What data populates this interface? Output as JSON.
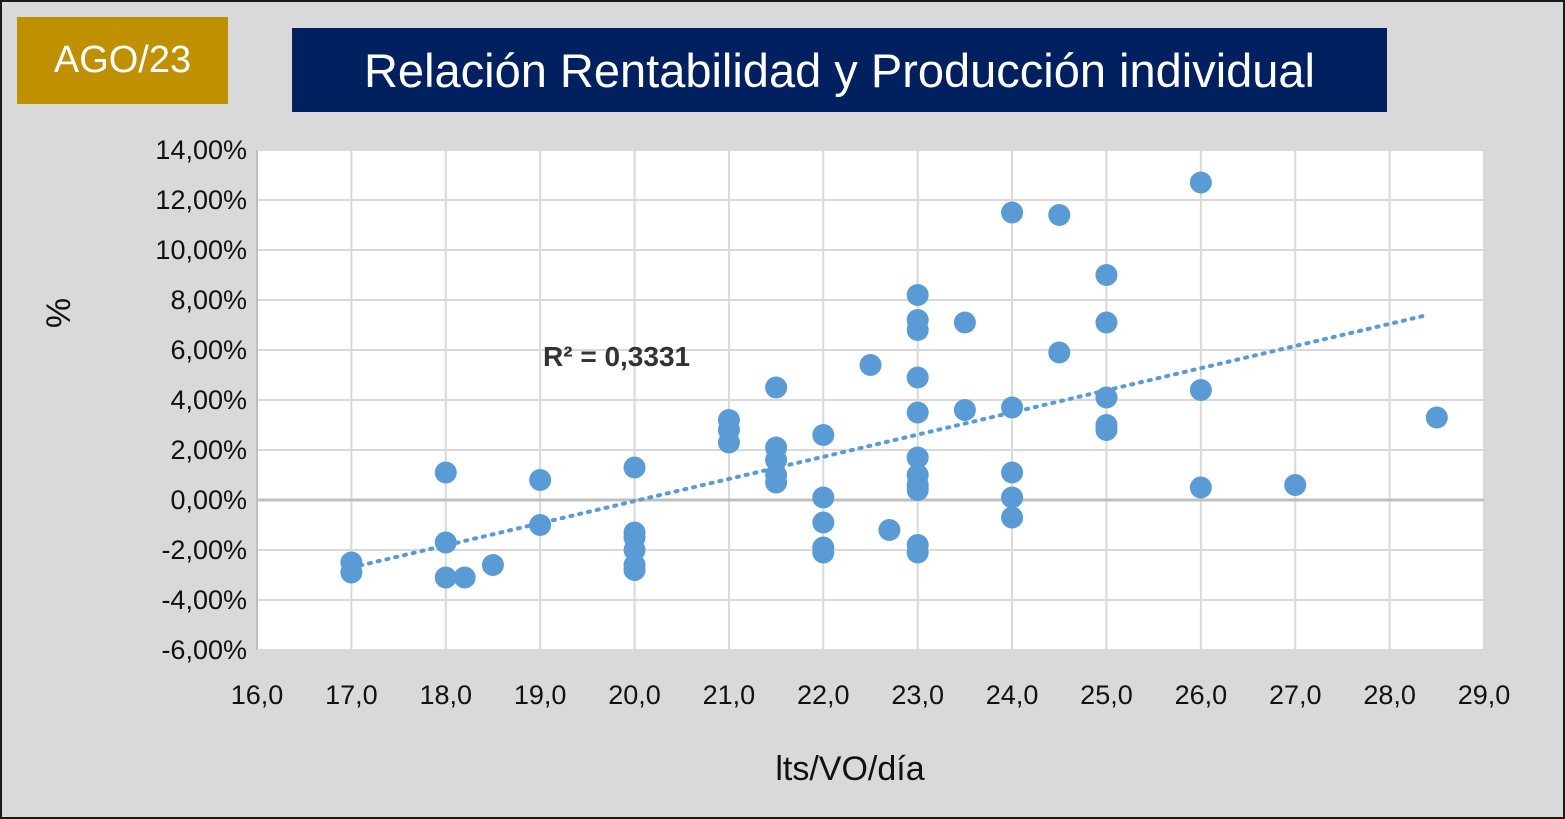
{
  "badge": "AGO/23",
  "chart_data": {
    "type": "scatter",
    "title": "Relación Rentabilidad y Producción individual",
    "xlabel": "lts/VO/día",
    "ylabel": "%",
    "xlim": [
      16,
      29
    ],
    "ylim": [
      -6,
      14
    ],
    "x_ticks": [
      "16,0",
      "17,0",
      "18,0",
      "19,0",
      "20,0",
      "21,0",
      "22,0",
      "23,0",
      "24,0",
      "25,0",
      "26,0",
      "27,0",
      "28,0",
      "29,0"
    ],
    "y_ticks": [
      "14,00%",
      "12,00%",
      "10,00%",
      "8,00%",
      "6,00%",
      "4,00%",
      "2,00%",
      "0,00%",
      "-2,00%",
      "-4,00%",
      "-6,00%"
    ],
    "grid": true,
    "point_color": "#5b9bd5",
    "trendline": {
      "type": "linear",
      "label": "R² = 0,3331",
      "color": "#5b9bd5",
      "start": [
        17.0,
        -2.7
      ],
      "end": [
        28.4,
        7.4
      ]
    },
    "points": [
      [
        17.0,
        -2.5
      ],
      [
        17.0,
        -2.9
      ],
      [
        18.0,
        1.1
      ],
      [
        18.0,
        -1.7
      ],
      [
        18.0,
        -3.1
      ],
      [
        18.2,
        -3.1
      ],
      [
        18.5,
        -2.6
      ],
      [
        19.0,
        0.8
      ],
      [
        19.0,
        -1.0
      ],
      [
        20.0,
        1.3
      ],
      [
        20.0,
        -1.3
      ],
      [
        20.0,
        -1.5
      ],
      [
        20.0,
        -2.0
      ],
      [
        20.0,
        -2.6
      ],
      [
        20.0,
        -2.8
      ],
      [
        21.0,
        3.2
      ],
      [
        21.0,
        2.8
      ],
      [
        21.0,
        2.3
      ],
      [
        21.5,
        4.5
      ],
      [
        21.5,
        2.1
      ],
      [
        21.5,
        1.6
      ],
      [
        21.5,
        1.0
      ],
      [
        21.5,
        0.7
      ],
      [
        22.0,
        2.6
      ],
      [
        22.0,
        0.1
      ],
      [
        22.0,
        -0.9
      ],
      [
        22.0,
        -1.9
      ],
      [
        22.0,
        -2.1
      ],
      [
        22.5,
        5.4
      ],
      [
        22.7,
        -1.2
      ],
      [
        23.0,
        8.2
      ],
      [
        23.0,
        7.2
      ],
      [
        23.0,
        6.8
      ],
      [
        23.0,
        4.9
      ],
      [
        23.0,
        3.5
      ],
      [
        23.0,
        1.7
      ],
      [
        23.0,
        1.0
      ],
      [
        23.0,
        0.6
      ],
      [
        23.0,
        0.4
      ],
      [
        23.0,
        -1.8
      ],
      [
        23.0,
        -2.1
      ],
      [
        23.5,
        7.1
      ],
      [
        23.5,
        3.6
      ],
      [
        24.0,
        11.5
      ],
      [
        24.0,
        3.7
      ],
      [
        24.0,
        1.1
      ],
      [
        24.0,
        0.1
      ],
      [
        24.0,
        -0.7
      ],
      [
        24.5,
        11.4
      ],
      [
        24.5,
        5.9
      ],
      [
        25.0,
        9.0
      ],
      [
        25.0,
        7.1
      ],
      [
        25.0,
        4.1
      ],
      [
        25.0,
        3.0
      ],
      [
        25.0,
        2.8
      ],
      [
        26.0,
        12.7
      ],
      [
        26.0,
        4.4
      ],
      [
        26.0,
        0.5
      ],
      [
        27.0,
        0.6
      ],
      [
        28.5,
        3.3
      ]
    ]
  }
}
